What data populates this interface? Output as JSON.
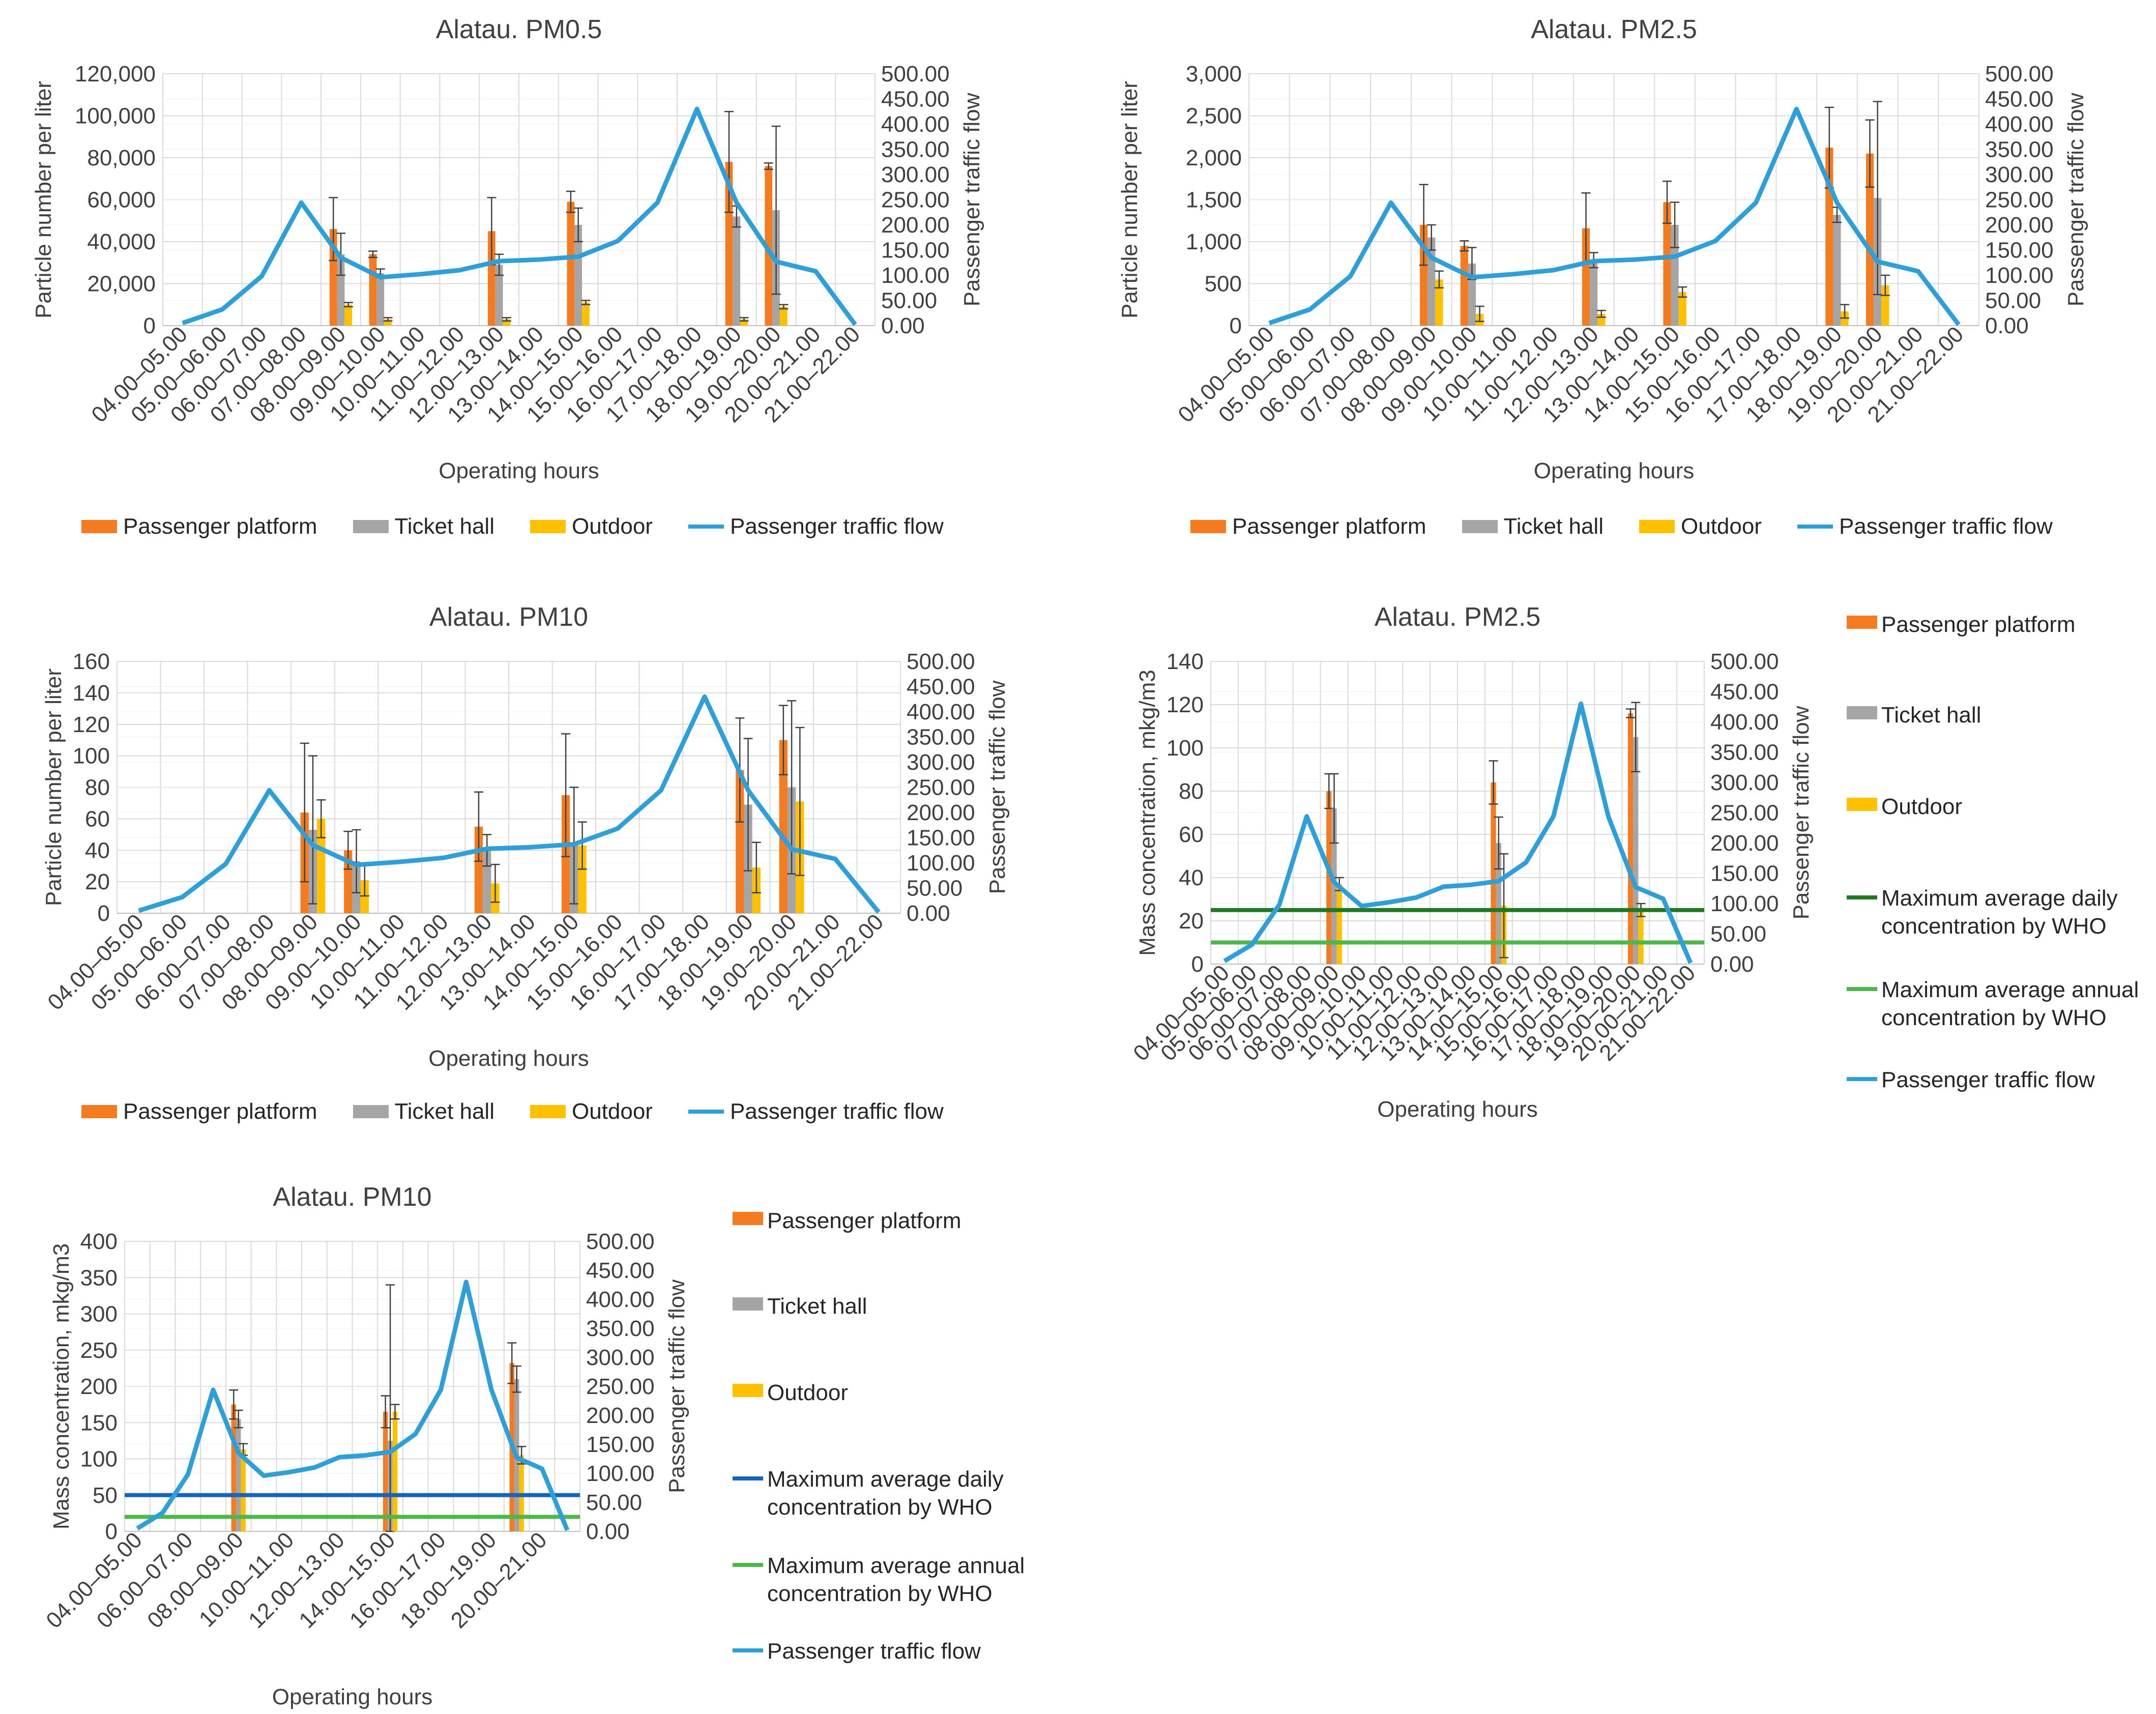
{
  "colors": {
    "platform": "#F47B20",
    "ticket": "#A5A5A5",
    "outdoor": "#FFC000",
    "traffic": "#2E9FD8",
    "who_daily_pm25": "#1F7A1F",
    "who_daily_pm10": "#1565C0",
    "who_annual": "#4CB848",
    "grid": "#D9D9D9",
    "errorbar": "#404040"
  },
  "legend_labels": {
    "platform": "Passenger platform",
    "ticket": "Ticket hall",
    "outdoor": "Outdoor",
    "traffic": "Passenger traffic flow",
    "who_daily": "Maximum average daily concentration by WHO",
    "who_annual": "Maximum average annual concentration by WHO"
  },
  "chart_data": [
    {
      "id": "pm05-count",
      "type": "bar",
      "title": "Alatau. PM0.5",
      "xlabel": "Operating hours",
      "ylabel": "Particle number per liter",
      "y2label": "Passenger traffic flow",
      "ylim": [
        0,
        120000
      ],
      "ystep": 20000,
      "yticks_fmt": "comma",
      "y2lim": [
        0,
        500
      ],
      "y2step": 50,
      "categories": [
        "04.00–05.00",
        "05.00–06.00",
        "06.00–07.00",
        "07.00–08.00",
        "08.00–09.00",
        "09.00–10.00",
        "10.00–11.00",
        "11.00–12.00",
        "12.00–13.00",
        "13.00–14.00",
        "14.00–15.00",
        "15.00–16.00",
        "16.00–17.00",
        "17.00–18.00",
        "18.00–19.00",
        "19.00–20.00",
        "20.00–21.00",
        "21.00–22.00"
      ],
      "series": [
        {
          "name": "Passenger platform",
          "key": "platform",
          "values": [
            null,
            null,
            null,
            null,
            46000,
            34000,
            null,
            null,
            45000,
            null,
            59000,
            null,
            null,
            null,
            78000,
            76000,
            null,
            null
          ],
          "errors": [
            null,
            null,
            null,
            null,
            15000,
            1500,
            null,
            null,
            16000,
            null,
            5000,
            null,
            null,
            null,
            24000,
            1500,
            null,
            null
          ]
        },
        {
          "name": "Ticket hall",
          "key": "ticket",
          "values": [
            null,
            null,
            null,
            null,
            34000,
            25000,
            null,
            null,
            29000,
            null,
            48000,
            null,
            null,
            null,
            52000,
            55000,
            null,
            null
          ],
          "errors": [
            null,
            null,
            null,
            null,
            10000,
            2000,
            null,
            null,
            5000,
            null,
            8000,
            null,
            null,
            null,
            5000,
            40000,
            null,
            null
          ]
        },
        {
          "name": "Outdoor",
          "key": "outdoor",
          "values": [
            null,
            null,
            null,
            null,
            10000,
            3000,
            null,
            null,
            3000,
            null,
            11000,
            null,
            null,
            null,
            3000,
            9000,
            null,
            null
          ],
          "errors": [
            null,
            null,
            null,
            null,
            1000,
            800,
            null,
            null,
            800,
            null,
            1000,
            null,
            null,
            null,
            800,
            1000,
            null,
            null
          ]
        }
      ],
      "traffic": [
        5,
        32,
        98,
        244,
        135,
        96,
        102,
        110,
        128,
        131,
        137,
        168,
        244,
        430,
        244,
        127,
        108,
        2
      ],
      "legend_position": "bottom"
    },
    {
      "id": "pm25-count",
      "type": "bar",
      "title": "Alatau. PM2.5",
      "xlabel": "Operating hours",
      "ylabel": "Particle number per liter",
      "y2label": "Passenger traffic flow",
      "ylim": [
        0,
        3000
      ],
      "ystep": 500,
      "yticks_fmt": "comma",
      "y2lim": [
        0,
        500
      ],
      "y2step": 50,
      "categories": [
        "04.00–05.00",
        "05.00–06.00",
        "06.00–07.00",
        "07.00–08.00",
        "08.00–09.00",
        "09.00–10.00",
        "10.00–11.00",
        "11.00–12.00",
        "12.00–13.00",
        "13.00–14.00",
        "14.00–15.00",
        "15.00–16.00",
        "16.00–17.00",
        "17.00–18.00",
        "18.00–19.00",
        "19.00–20.00",
        "20.00–21.00",
        "21.00–22.00"
      ],
      "series": [
        {
          "name": "Passenger platform",
          "key": "platform",
          "values": [
            null,
            null,
            null,
            null,
            1200,
            950,
            null,
            null,
            1160,
            null,
            1470,
            null,
            null,
            null,
            2120,
            2050,
            null,
            null
          ],
          "errors": [
            null,
            null,
            null,
            null,
            480,
            60,
            null,
            null,
            420,
            null,
            250,
            null,
            null,
            null,
            480,
            400,
            null,
            null
          ]
        },
        {
          "name": "Ticket hall",
          "key": "ticket",
          "values": [
            null,
            null,
            null,
            null,
            1050,
            740,
            null,
            null,
            780,
            null,
            1200,
            null,
            null,
            null,
            1320,
            1520,
            null,
            null
          ],
          "errors": [
            null,
            null,
            null,
            null,
            150,
            190,
            null,
            null,
            90,
            null,
            270,
            null,
            null,
            null,
            90,
            1150,
            null,
            null
          ]
        },
        {
          "name": "Outdoor",
          "key": "outdoor",
          "values": [
            null,
            null,
            null,
            null,
            550,
            140,
            null,
            null,
            140,
            null,
            400,
            null,
            null,
            null,
            170,
            480,
            null,
            null
          ],
          "errors": [
            null,
            null,
            null,
            null,
            100,
            90,
            null,
            null,
            40,
            null,
            60,
            null,
            null,
            null,
            80,
            120,
            null,
            null
          ]
        }
      ],
      "traffic": [
        5,
        32,
        98,
        244,
        135,
        96,
        102,
        110,
        128,
        131,
        137,
        168,
        244,
        430,
        244,
        127,
        108,
        2
      ],
      "legend_position": "bottom"
    },
    {
      "id": "pm10-count",
      "type": "bar",
      "title": "Alatau. PM10",
      "xlabel": "Operating hours",
      "ylabel": "Particle number per liter",
      "y2label": "Passenger traffic flow",
      "ylim": [
        0,
        160
      ],
      "ystep": 20,
      "yticks_fmt": "int",
      "y2lim": [
        0,
        500
      ],
      "y2step": 50,
      "categories": [
        "04.00–05.00",
        "05.00–06.00",
        "06.00–07.00",
        "07.00–08.00",
        "08.00–09.00",
        "09.00–10.00",
        "10.00–11.00",
        "11.00–12.00",
        "12.00–13.00",
        "13.00–14.00",
        "14.00–15.00",
        "15.00–16.00",
        "16.00–17.00",
        "17.00–18.00",
        "18.00–19.00",
        "19.00–20.00",
        "20.00–21.00",
        "21.00–22.00"
      ],
      "series": [
        {
          "name": "Passenger platform",
          "key": "platform",
          "values": [
            null,
            null,
            null,
            null,
            64,
            40,
            null,
            null,
            55,
            null,
            75,
            null,
            null,
            null,
            91,
            110,
            null,
            null
          ],
          "errors": [
            null,
            null,
            null,
            null,
            44,
            12,
            null,
            null,
            22,
            null,
            39,
            null,
            null,
            null,
            33,
            22,
            null,
            null
          ]
        },
        {
          "name": "Ticket hall",
          "key": "ticket",
          "values": [
            null,
            null,
            null,
            null,
            53,
            33,
            null,
            null,
            40,
            null,
            43,
            null,
            null,
            null,
            69,
            80,
            null,
            null
          ],
          "errors": [
            null,
            null,
            null,
            null,
            47,
            20,
            null,
            null,
            10,
            null,
            37,
            null,
            null,
            null,
            42,
            55,
            null,
            null
          ]
        },
        {
          "name": "Outdoor",
          "key": "outdoor",
          "values": [
            null,
            null,
            null,
            null,
            60,
            21,
            null,
            null,
            19,
            null,
            43,
            null,
            null,
            null,
            29,
            71,
            null,
            null
          ],
          "errors": [
            null,
            null,
            null,
            null,
            12,
            10,
            null,
            null,
            12,
            null,
            15,
            null,
            null,
            null,
            16,
            47,
            null,
            null
          ]
        }
      ],
      "traffic": [
        5,
        32,
        98,
        244,
        135,
        96,
        102,
        110,
        128,
        131,
        137,
        168,
        244,
        430,
        244,
        127,
        108,
        2
      ],
      "legend_position": "bottom"
    },
    {
      "id": "pm25-mass",
      "type": "bar",
      "title": "Alatau. PM2.5",
      "xlabel": "Operating hours",
      "ylabel": "Mass concentration, mkg/m3",
      "y2label": "Passenger traffic flow",
      "ylim": [
        0,
        140
      ],
      "ystep": 20,
      "yticks_fmt": "int",
      "y2lim": [
        0,
        500
      ],
      "y2step": 50,
      "categories": [
        "04.00–05.00",
        "05.00–06.00",
        "06.00–07.00",
        "07.00–08.00",
        "08.00–09.00",
        "09.00–10.00",
        "10.00–11.00",
        "11.00–12.00",
        "12.00–13.00",
        "13.00–14.00",
        "14.00–15.00",
        "15.00–16.00",
        "16.00–17.00",
        "17.00–18.00",
        "18.00–19.00",
        "19.00–20.00",
        "20.00–21.00",
        "21.00–22.00"
      ],
      "series": [
        {
          "name": "Passenger platform",
          "key": "platform",
          "values": [
            null,
            null,
            null,
            null,
            80,
            null,
            null,
            null,
            null,
            null,
            84,
            null,
            null,
            null,
            null,
            116,
            null,
            null
          ],
          "errors": [
            null,
            null,
            null,
            null,
            8,
            null,
            null,
            null,
            null,
            null,
            10,
            null,
            null,
            null,
            null,
            2,
            null,
            null
          ]
        },
        {
          "name": "Ticket hall",
          "key": "ticket",
          "values": [
            null,
            null,
            null,
            null,
            72,
            null,
            null,
            null,
            null,
            null,
            56,
            null,
            null,
            null,
            null,
            105,
            null,
            null
          ],
          "errors": [
            null,
            null,
            null,
            null,
            16,
            null,
            null,
            null,
            null,
            null,
            12,
            null,
            null,
            null,
            null,
            16,
            null,
            null
          ]
        },
        {
          "name": "Outdoor",
          "key": "outdoor",
          "values": [
            null,
            null,
            null,
            null,
            37,
            null,
            null,
            null,
            null,
            null,
            27,
            null,
            null,
            null,
            null,
            25,
            null,
            null
          ],
          "errors": [
            null,
            null,
            null,
            null,
            3,
            null,
            null,
            null,
            null,
            null,
            24,
            null,
            null,
            null,
            null,
            3,
            null,
            null
          ]
        }
      ],
      "reference_lines": [
        {
          "key": "who_daily",
          "name": "Maximum average daily concentration by WHO",
          "value": 25,
          "color_key": "who_daily_pm25"
        },
        {
          "key": "who_annual",
          "name": "Maximum average annual concentration by WHO",
          "value": 10,
          "color_key": "who_annual"
        }
      ],
      "traffic": [
        5,
        32,
        98,
        244,
        135,
        96,
        102,
        110,
        128,
        131,
        137,
        168,
        244,
        430,
        244,
        127,
        108,
        2
      ],
      "legend_position": "right"
    },
    {
      "id": "pm10-mass",
      "type": "bar",
      "title": "Alatau. PM10",
      "xlabel": "Operating hours",
      "ylabel": "Mass concentration, mkg/m3",
      "y2label": "Passenger traffic flow",
      "ylim": [
        0,
        400
      ],
      "ystep": 50,
      "yticks_fmt": "int",
      "y2lim": [
        0,
        500
      ],
      "y2step": 50,
      "categories": [
        "04.00–05.00",
        "05.00–06.00",
        "06.00–07.00",
        "07.00–08.00",
        "08.00–09.00",
        "09.00–10.00",
        "10.00–11.00",
        "11.00–12.00",
        "12.00–13.00",
        "13.00–14.00",
        "14.00–15.00",
        "15.00–16.00",
        "16.00–17.00",
        "17.00–18.00",
        "18.00–19.00",
        "19.00–20.00",
        "20.00–21.00",
        "21.00–22.00"
      ],
      "tick_label_every": 2,
      "series": [
        {
          "name": "Passenger platform",
          "key": "platform",
          "values": [
            null,
            null,
            null,
            null,
            175,
            null,
            null,
            null,
            null,
            null,
            165,
            null,
            null,
            null,
            null,
            232,
            null,
            null
          ],
          "errors": [
            null,
            null,
            null,
            null,
            20,
            null,
            null,
            null,
            null,
            null,
            22,
            null,
            null,
            null,
            null,
            28,
            null,
            null
          ]
        },
        {
          "name": "Ticket hall",
          "key": "ticket",
          "values": [
            null,
            null,
            null,
            null,
            155,
            null,
            null,
            null,
            null,
            null,
            125,
            null,
            null,
            null,
            null,
            210,
            null,
            null
          ],
          "errors": [
            null,
            null,
            null,
            null,
            12,
            null,
            null,
            null,
            null,
            null,
            215,
            null,
            null,
            null,
            null,
            18,
            null,
            null
          ]
        },
        {
          "name": "Outdoor",
          "key": "outdoor",
          "values": [
            null,
            null,
            null,
            null,
            113,
            null,
            null,
            null,
            null,
            null,
            165,
            null,
            null,
            null,
            null,
            105,
            null,
            null
          ],
          "errors": [
            null,
            null,
            null,
            null,
            8,
            null,
            null,
            null,
            null,
            null,
            10,
            null,
            null,
            null,
            null,
            12,
            null,
            null
          ]
        }
      ],
      "reference_lines": [
        {
          "key": "who_daily",
          "name": "Maximum average daily concentration by WHO",
          "value": 50,
          "color_key": "who_daily_pm10"
        },
        {
          "key": "who_annual",
          "name": "Maximum average annual concentration by WHO",
          "value": 20,
          "color_key": "who_annual"
        }
      ],
      "traffic": [
        5,
        32,
        98,
        244,
        135,
        96,
        102,
        110,
        128,
        131,
        137,
        168,
        244,
        430,
        244,
        127,
        108,
        2
      ],
      "legend_position": "right"
    }
  ]
}
